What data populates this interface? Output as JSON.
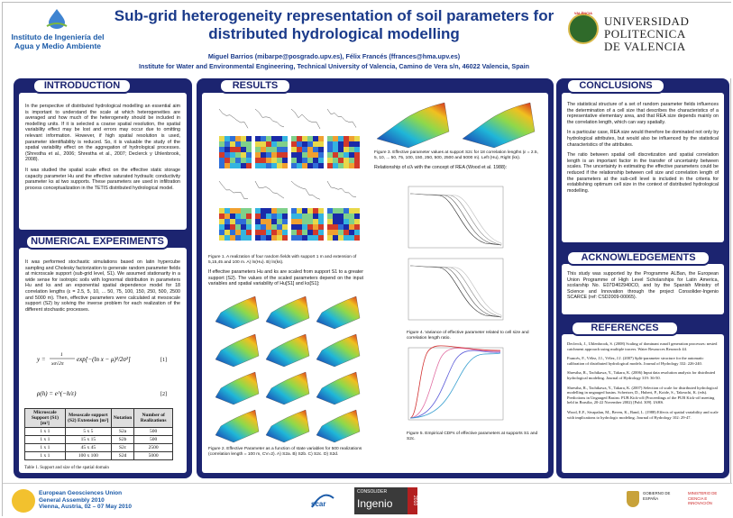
{
  "header": {
    "title_line1": "Sub-grid heterogeneity representation of soil parameters for",
    "title_line2": "distributed hydrological modelling",
    "authors": "Miguel Barrios (mibarpe@posgrado.upv.es), Félix Francés (ffrances@hma.upv.es)",
    "affiliation": "Institute for Water and Environmental Engineering, Technical University of Valencia, Camino de Vera s/n, 46022 Valencia, Spain",
    "iiama_line1": "Instituto de Ingeniería del",
    "iiama_line2": "Agua y Medio Ambiente",
    "upv_line1": "UNIVERSIDAD",
    "upv_line2": "POLITECNICA",
    "upv_line3": "DE VALENCIA",
    "seal_text": "VALÈNCIA"
  },
  "sections": {
    "introduction": "INTRODUCTION",
    "numerical": "NUMERICAL EXPERIMENTS",
    "results": "RESULTS",
    "conclusions": "CONCLUSIONS",
    "acknowledgements": "ACKNOWLEDGEMENTS",
    "references": "REFERENCES"
  },
  "introduction": {
    "p1": "In the perspective of distributed hydrological modelling an essential aim is important to understand the scale at which heterogeneities are averaged and how much of the heterogeneity should be included in modelling units. If it is selected a coarse spatial resolution, the spatial variability effect may be lost and errors may occur due to omitting relevant information. However, if high spatial resolution is used, parameter identifiability is reduced. So, it is valuable the study of the spatial variability effect on the aggregation of hydrological processes. (Shrestha et al., 2006; Shrestha et al., 2007; Declerck y Uhlenbrook, 2008).",
    "p2": "It was studied the spatial scale effect on the effective static storage capacity parameter Hu and the effective saturated hydraulic conductivity parameter ks at two supports. These parameters are used in infiltration process conceptualization in the TETIS distributed hydrological model."
  },
  "numerical": {
    "p1": "It was performed stochastic simulations based on latin hypercube sampling and Cholesky factorization to generate random parameter fields at microscale support (sub-grid level, S1). We assumed stationarity in a wide sense for isotropic soils with lognormal distribution in parameters Hu and ks and an exponential spatial dependence model for 18 correlation lengths (ε = 2.5, 5, 10, ... 50, 75, 100, 150, 250, 500, 2500 and 5000 m). Then, effective parameters were calculated at mesoscale support (S2) by solving the inverse problem for each realization of the different stochastic processes.",
    "eq1_num": "[1]",
    "eq2_num": "[2]",
    "table": {
      "headers": [
        "Microscale Support (S1) [m²]",
        "Mesoscale support (S2) Extension [m²]",
        "Notation",
        "Number of Realizations"
      ],
      "rows": [
        [
          "1 x 1",
          "5 x 5",
          "S2a",
          "500"
        ],
        [
          "1 x 1",
          "15 x 15",
          "S2b",
          "500"
        ],
        [
          "1 x 1",
          "45 x 45",
          "S2c",
          "2500"
        ],
        [
          "1 x 1",
          "100 x 100",
          "S2d",
          "5000"
        ]
      ],
      "caption": "Table 1. Support and size of the spatial domain"
    }
  },
  "results": {
    "fig1_caption": "Figure 1. A realization of four random fields with support 1 m and extension of 5,15,45 and 100 m. A) ln(Hu). B) ln(ks).",
    "p1": "If effective parameters Hu and ks are scaled from support S1 to a greater support (S2). The values of the scaled parameters depend on the input variables and spatial variability of Hu[S1] and ks[S1]:",
    "fig2_caption": "Figure 2. Effective Parameter as a function of state variables for 500 realizations (correlation length = 100 m, CV=2). A) S2a. B) S2b. C) S2c. D) S2d.",
    "fig3_caption": "Figure 3. Effective parameter values at support S2c for 18 correlation lengths (ε = 2.5, 5, 10, ... 50, 75, 100, 150, 250, 500, 2500 and 5000 m). Left (Hu), Right (ks).",
    "p2": "Relationship of ε/λ with the concept of REA (Wood et al. 1988):",
    "fig4_caption": "Figure 4. Variance of effective parameter related to cell size and correlation length ratio.",
    "fig5_caption": "Figure 5. Empirical CDFs of effective parameters at supports S1 and S2c."
  },
  "conclusions": {
    "p1": "The statistical structure of a set of random parameter fields influences the determination of a cell size that describes the characteristics of a representative elementary area, and that REA size depends mainly on the correlation length, which can vary spatially.",
    "p2": "In a particular case, REA size would therefore be dominated not only by hydrological attributes, but would also be influenced by the statistical characteristics of the attributes.",
    "p3": "The ratio between spatial cell discretization and spatial correlation length is an important factor in the transfer of uncertainty between scales. The uncertainty in estimating the effective parameters could be reduced if the relationship between cell size and correlation length of the parameters at the sub-cell level is included in the criteria for establishing optimum cell size in the context of distributed hydrological modelling."
  },
  "acknowledgements": {
    "p1": "This study was supported by the Programme ALBan, the European Union Programme of High Level Scholarships for Latin America, scolarship No. E07D402940CO, and by the Spanish Ministry of Science and Innovation through the project Consolider-Ingenio SCARCE (ref: CSD2009-00065)."
  },
  "references": [
    "Declerck, J., Uhlenbrook, S. (2008) Scaling of dominant runoff generation processes: nested catchment approach using multiple tracers. Water Resources Research 44.",
    "Francés, F., Vélez, J.I., Vélez, J.J. (2007) Split-parameter structure for the automatic calibration of distributed hydrological models. Journal of Hydrology 332: 226-240.",
    "Shrestha, R., Tachikawa, Y., Takara, K. (2006) Input data resolution analysis for distributed hydrological modeling. Journal of Hydrology 319: 36-50.",
    "Shrestha, R., Tachikawa, Y., Takara, K. (2007) Selection of scale for distributed hydrological modelling in ungauged basins. Schertzer, D., Hubert, P., Koide, S., Takeuchi, K. (eds). Predictions in Ungauged Basins: PUB Kick-off (Proceedings of the PUB Kick-off meeting held in Brasilia, 20-22 November 2002) [Publ. 309]. IAHS.",
    "Wood, E.F., Sivapalan, M., Beven, K., Band, L. (1988) Effects of spatial variability and scale with implications to hydrologic modeling. Journal of Hydrology 102: 29-47."
  ],
  "footer": {
    "egu_line1": "European Geosciences Union",
    "egu_line2": "General Assembly 2010",
    "egu_line3": "Vienna, Austria, 02 – 07 May 2010",
    "consolider_label": "CONSOLIDER",
    "consolider_name": "Ingenio",
    "consolider_year": "2010",
    "scarce_label": "scar",
    "ministerio_left": "GOBIERNO DE ESPAÑA",
    "ministerio_right": "MINISTERIO DE CIENCIA E INNOVACIÓN"
  }
}
